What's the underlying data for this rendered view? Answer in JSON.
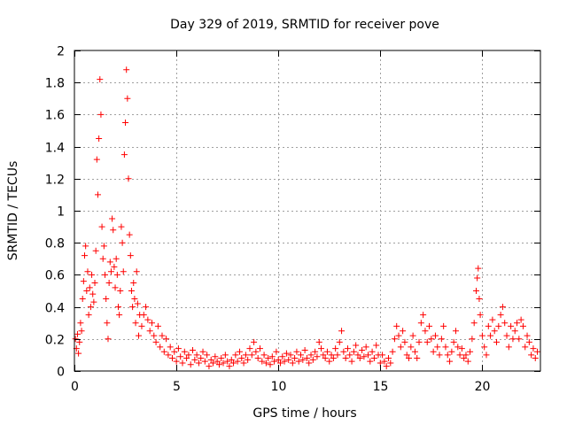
{
  "chart_data": {
    "type": "scatter",
    "title": "Day 329 of 2019, SRMTID for receiver pove",
    "xlabel": "GPS time / hours",
    "ylabel": "SRMTID / TECUs",
    "xlim": [
      0,
      22.85
    ],
    "ylim": [
      0,
      2
    ],
    "xticks": [
      0,
      5,
      10,
      15,
      20
    ],
    "yticks": [
      0,
      0.2,
      0.4,
      0.6,
      0.8,
      1,
      1.2,
      1.4,
      1.6,
      1.8,
      2
    ],
    "ytick_labels": [
      "0",
      "0.2",
      "0.4",
      "0.6",
      "0.8",
      "1",
      "1.2",
      "1.4",
      "1.6",
      "1.8",
      "2"
    ],
    "grid": true,
    "marker": "+",
    "color": "#ff0000",
    "series": [
      {
        "name": "SRMTID",
        "points": [
          [
            0.05,
            0.2
          ],
          [
            0.1,
            0.14
          ],
          [
            0.15,
            0.23
          ],
          [
            0.2,
            0.11
          ],
          [
            0.25,
            0.18
          ],
          [
            0.3,
            0.3
          ],
          [
            0.35,
            0.25
          ],
          [
            0.4,
            0.45
          ],
          [
            0.45,
            0.56
          ],
          [
            0.5,
            0.72
          ],
          [
            0.55,
            0.78
          ],
          [
            0.6,
            0.5
          ],
          [
            0.65,
            0.62
          ],
          [
            0.7,
            0.35
          ],
          [
            0.75,
            0.52
          ],
          [
            0.8,
            0.4
          ],
          [
            0.85,
            0.6
          ],
          [
            0.9,
            0.48
          ],
          [
            0.95,
            0.43
          ],
          [
            1.0,
            0.55
          ],
          [
            1.05,
            0.75
          ],
          [
            1.1,
            1.32
          ],
          [
            1.15,
            1.1
          ],
          [
            1.2,
            1.45
          ],
          [
            1.25,
            1.82
          ],
          [
            1.3,
            1.6
          ],
          [
            1.35,
            0.9
          ],
          [
            1.4,
            0.7
          ],
          [
            1.45,
            0.78
          ],
          [
            1.5,
            0.6
          ],
          [
            1.55,
            0.45
          ],
          [
            1.6,
            0.3
          ],
          [
            1.65,
            0.2
          ],
          [
            1.7,
            0.55
          ],
          [
            1.75,
            0.68
          ],
          [
            1.8,
            0.62
          ],
          [
            1.85,
            0.95
          ],
          [
            1.9,
            0.88
          ],
          [
            1.95,
            0.65
          ],
          [
            2.0,
            0.52
          ],
          [
            2.05,
            0.7
          ],
          [
            2.1,
            0.6
          ],
          [
            2.15,
            0.4
          ],
          [
            2.2,
            0.35
          ],
          [
            2.25,
            0.5
          ],
          [
            2.3,
            0.9
          ],
          [
            2.35,
            0.8
          ],
          [
            2.4,
            0.62
          ],
          [
            2.45,
            1.35
          ],
          [
            2.5,
            1.55
          ],
          [
            2.55,
            1.88
          ],
          [
            2.6,
            1.7
          ],
          [
            2.65,
            1.2
          ],
          [
            2.7,
            0.85
          ],
          [
            2.75,
            0.72
          ],
          [
            2.8,
            0.5
          ],
          [
            2.85,
            0.4
          ],
          [
            2.9,
            0.55
          ],
          [
            2.95,
            0.45
          ],
          [
            3.0,
            0.3
          ],
          [
            3.05,
            0.62
          ],
          [
            3.1,
            0.42
          ],
          [
            3.15,
            0.22
          ],
          [
            3.2,
            0.35
          ],
          [
            3.3,
            0.28
          ],
          [
            3.4,
            0.35
          ],
          [
            3.5,
            0.4
          ],
          [
            3.6,
            0.32
          ],
          [
            3.7,
            0.25
          ],
          [
            3.8,
            0.3
          ],
          [
            3.9,
            0.22
          ],
          [
            4.0,
            0.18
          ],
          [
            4.1,
            0.28
          ],
          [
            4.2,
            0.15
          ],
          [
            4.3,
            0.22
          ],
          [
            4.4,
            0.12
          ],
          [
            4.5,
            0.2
          ],
          [
            4.6,
            0.1
          ],
          [
            4.7,
            0.15
          ],
          [
            4.8,
            0.08
          ],
          [
            4.9,
            0.12
          ],
          [
            5.0,
            0.06
          ],
          [
            5.1,
            0.14
          ],
          [
            5.2,
            0.09
          ],
          [
            5.3,
            0.05
          ],
          [
            5.4,
            0.12
          ],
          [
            5.5,
            0.08
          ],
          [
            5.6,
            0.1
          ],
          [
            5.7,
            0.04
          ],
          [
            5.8,
            0.13
          ],
          [
            5.9,
            0.07
          ],
          [
            6.0,
            0.1
          ],
          [
            6.1,
            0.05
          ],
          [
            6.2,
            0.08
          ],
          [
            6.3,
            0.12
          ],
          [
            6.4,
            0.06
          ],
          [
            6.5,
            0.1
          ],
          [
            6.6,
            0.03
          ],
          [
            6.7,
            0.07
          ],
          [
            6.8,
            0.05
          ],
          [
            6.9,
            0.09
          ],
          [
            7.0,
            0.06
          ],
          [
            7.1,
            0.04
          ],
          [
            7.2,
            0.08
          ],
          [
            7.3,
            0.05
          ],
          [
            7.4,
            0.1
          ],
          [
            7.5,
            0.06
          ],
          [
            7.6,
            0.03
          ],
          [
            7.7,
            0.07
          ],
          [
            7.8,
            0.05
          ],
          [
            7.9,
            0.1
          ],
          [
            8.0,
            0.06
          ],
          [
            8.1,
            0.12
          ],
          [
            8.2,
            0.08
          ],
          [
            8.3,
            0.05
          ],
          [
            8.4,
            0.1
          ],
          [
            8.5,
            0.07
          ],
          [
            8.6,
            0.14
          ],
          [
            8.7,
            0.1
          ],
          [
            8.8,
            0.18
          ],
          [
            8.9,
            0.12
          ],
          [
            9.0,
            0.08
          ],
          [
            9.1,
            0.14
          ],
          [
            9.2,
            0.06
          ],
          [
            9.3,
            0.1
          ],
          [
            9.4,
            0.05
          ],
          [
            9.5,
            0.08
          ],
          [
            9.6,
            0.04
          ],
          [
            9.7,
            0.09
          ],
          [
            9.8,
            0.06
          ],
          [
            9.9,
            0.12
          ],
          [
            10.0,
            0.07
          ],
          [
            10.1,
            0.05
          ],
          [
            10.2,
            0.09
          ],
          [
            10.3,
            0.06
          ],
          [
            10.4,
            0.11
          ],
          [
            10.5,
            0.07
          ],
          [
            10.6,
            0.1
          ],
          [
            10.7,
            0.05
          ],
          [
            10.8,
            0.08
          ],
          [
            10.9,
            0.12
          ],
          [
            11.0,
            0.06
          ],
          [
            11.1,
            0.1
          ],
          [
            11.2,
            0.07
          ],
          [
            11.3,
            0.13
          ],
          [
            11.4,
            0.08
          ],
          [
            11.5,
            0.05
          ],
          [
            11.6,
            0.1
          ],
          [
            11.7,
            0.07
          ],
          [
            11.8,
            0.12
          ],
          [
            11.9,
            0.09
          ],
          [
            12.0,
            0.18
          ],
          [
            12.1,
            0.14
          ],
          [
            12.2,
            0.1
          ],
          [
            12.3,
            0.08
          ],
          [
            12.4,
            0.12
          ],
          [
            12.5,
            0.06
          ],
          [
            12.6,
            0.1
          ],
          [
            12.7,
            0.08
          ],
          [
            12.8,
            0.14
          ],
          [
            12.9,
            0.1
          ],
          [
            13.0,
            0.18
          ],
          [
            13.1,
            0.25
          ],
          [
            13.2,
            0.12
          ],
          [
            13.3,
            0.08
          ],
          [
            13.4,
            0.14
          ],
          [
            13.5,
            0.1
          ],
          [
            13.6,
            0.06
          ],
          [
            13.7,
            0.12
          ],
          [
            13.8,
            0.16
          ],
          [
            13.9,
            0.1
          ],
          [
            14.0,
            0.08
          ],
          [
            14.1,
            0.13
          ],
          [
            14.2,
            0.09
          ],
          [
            14.3,
            0.15
          ],
          [
            14.4,
            0.1
          ],
          [
            14.5,
            0.06
          ],
          [
            14.6,
            0.12
          ],
          [
            14.7,
            0.08
          ],
          [
            14.8,
            0.16
          ],
          [
            14.9,
            0.1
          ],
          [
            15.0,
            0.05
          ],
          [
            15.1,
            0.1
          ],
          [
            15.2,
            0.06
          ],
          [
            15.3,
            0.03
          ],
          [
            15.4,
            0.08
          ],
          [
            15.5,
            0.05
          ],
          [
            15.6,
            0.12
          ],
          [
            15.7,
            0.2
          ],
          [
            15.8,
            0.28
          ],
          [
            15.9,
            0.22
          ],
          [
            16.0,
            0.15
          ],
          [
            16.1,
            0.25
          ],
          [
            16.2,
            0.18
          ],
          [
            16.3,
            0.1
          ],
          [
            16.4,
            0.08
          ],
          [
            16.5,
            0.15
          ],
          [
            16.6,
            0.22
          ],
          [
            16.7,
            0.12
          ],
          [
            16.8,
            0.08
          ],
          [
            16.9,
            0.18
          ],
          [
            17.0,
            0.3
          ],
          [
            17.1,
            0.35
          ],
          [
            17.2,
            0.25
          ],
          [
            17.3,
            0.18
          ],
          [
            17.4,
            0.28
          ],
          [
            17.5,
            0.2
          ],
          [
            17.6,
            0.12
          ],
          [
            17.7,
            0.22
          ],
          [
            17.8,
            0.15
          ],
          [
            17.9,
            0.1
          ],
          [
            18.0,
            0.2
          ],
          [
            18.1,
            0.28
          ],
          [
            18.2,
            0.15
          ],
          [
            18.3,
            0.1
          ],
          [
            18.4,
            0.06
          ],
          [
            18.5,
            0.12
          ],
          [
            18.6,
            0.18
          ],
          [
            18.7,
            0.25
          ],
          [
            18.8,
            0.15
          ],
          [
            18.9,
            0.1
          ],
          [
            19.0,
            0.14
          ],
          [
            19.1,
            0.08
          ],
          [
            19.2,
            0.1
          ],
          [
            19.3,
            0.06
          ],
          [
            19.4,
            0.12
          ],
          [
            19.5,
            0.2
          ],
          [
            19.6,
            0.3
          ],
          [
            19.7,
            0.5
          ],
          [
            19.75,
            0.58
          ],
          [
            19.8,
            0.64
          ],
          [
            19.85,
            0.45
          ],
          [
            19.9,
            0.35
          ],
          [
            20.0,
            0.22
          ],
          [
            20.1,
            0.15
          ],
          [
            20.2,
            0.1
          ],
          [
            20.3,
            0.28
          ],
          [
            20.4,
            0.22
          ],
          [
            20.5,
            0.32
          ],
          [
            20.6,
            0.25
          ],
          [
            20.7,
            0.18
          ],
          [
            20.8,
            0.28
          ],
          [
            20.9,
            0.35
          ],
          [
            21.0,
            0.4
          ],
          [
            21.1,
            0.3
          ],
          [
            21.2,
            0.22
          ],
          [
            21.3,
            0.15
          ],
          [
            21.4,
            0.28
          ],
          [
            21.5,
            0.2
          ],
          [
            21.6,
            0.25
          ],
          [
            21.7,
            0.3
          ],
          [
            21.8,
            0.2
          ],
          [
            21.9,
            0.32
          ],
          [
            22.0,
            0.28
          ],
          [
            22.1,
            0.15
          ],
          [
            22.2,
            0.22
          ],
          [
            22.3,
            0.18
          ],
          [
            22.4,
            0.1
          ],
          [
            22.5,
            0.14
          ],
          [
            22.6,
            0.08
          ],
          [
            22.7,
            0.12
          ]
        ]
      }
    ]
  }
}
